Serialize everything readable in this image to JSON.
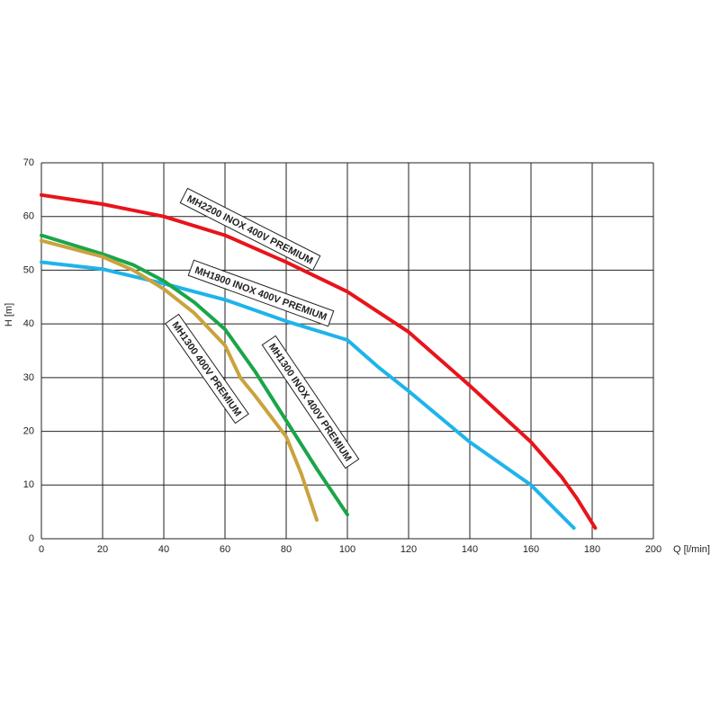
{
  "chart_data": {
    "type": "line",
    "xlabel": "Q [l/min]",
    "ylabel": "H [m]",
    "xlim": [
      0,
      200
    ],
    "xticks": [
      0,
      20,
      40,
      60,
      80,
      100,
      120,
      140,
      160,
      180,
      200
    ],
    "ylim": [
      0,
      70
    ],
    "yticks": [
      0,
      10,
      20,
      30,
      40,
      50,
      60,
      70
    ],
    "grid": true,
    "series": [
      {
        "name": "MH2200 INOX 400V PREMIUM",
        "color": "#e8141b",
        "x": [
          0,
          20,
          40,
          60,
          80,
          100,
          120,
          140,
          160,
          170,
          175,
          181
        ],
        "values": [
          64,
          62.3,
          60,
          56.5,
          51.5,
          46,
          38.5,
          28.5,
          18,
          11.5,
          7.5,
          2
        ]
      },
      {
        "name": "MH1800 INOX 400V PREMIUM",
        "color": "#1eb4ea",
        "x": [
          0,
          20,
          40,
          60,
          80,
          100,
          110,
          120,
          140,
          160,
          174
        ],
        "values": [
          51.5,
          50.2,
          47.5,
          44.5,
          40.5,
          37,
          32,
          27.5,
          18,
          10,
          2
        ]
      },
      {
        "name": "MH1300 INOX 400V PREMIUM",
        "color": "#1aa54a",
        "x": [
          0,
          20,
          30,
          40,
          50,
          60,
          70,
          80,
          90,
          100
        ],
        "values": [
          56.5,
          53,
          51,
          48,
          44,
          39,
          31,
          22,
          13,
          4.5
        ]
      },
      {
        "name": "MH1300 400V PREMIUM",
        "color": "#c9a33c",
        "x": [
          0,
          20,
          30,
          40,
          50,
          60,
          65,
          70,
          80,
          85,
          90
        ],
        "values": [
          55.5,
          52.5,
          50,
          46.5,
          42,
          36,
          30,
          26.5,
          19,
          12,
          3.5
        ]
      }
    ]
  }
}
